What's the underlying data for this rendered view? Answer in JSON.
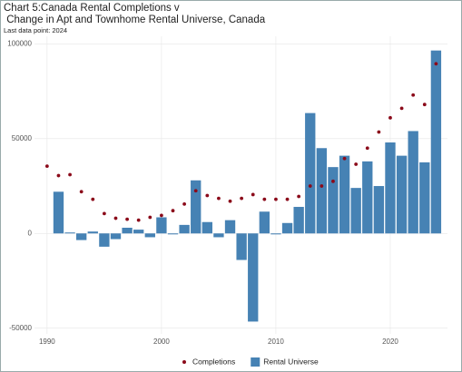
{
  "chart_data": {
    "type": "bar-scatter",
    "title": [
      "Chart 5:Canada Rental Completions v",
      " Change in Apt and Townhome Rental Universe, Canada"
    ],
    "subtitle": "Last data point: 2024",
    "x": [
      1990,
      1991,
      1992,
      1993,
      1994,
      1995,
      1996,
      1997,
      1998,
      1999,
      2000,
      2001,
      2002,
      2003,
      2004,
      2005,
      2006,
      2007,
      2008,
      2009,
      2010,
      2011,
      2012,
      2013,
      2014,
      2015,
      2016,
      2017,
      2018,
      2019,
      2020,
      2021,
      2022,
      2023,
      2024
    ],
    "series": [
      {
        "name": "Completions",
        "type": "scatter",
        "color": "#8b0a1a",
        "values": [
          35500,
          30500,
          31000,
          22000,
          18000,
          10500,
          8000,
          7500,
          7000,
          8500,
          9500,
          12000,
          15500,
          22500,
          20000,
          18500,
          17000,
          18500,
          20500,
          18000,
          18000,
          18000,
          19500,
          25000,
          25000,
          27500,
          39500,
          36500,
          45000,
          53500,
          61000,
          66000,
          73000,
          68000,
          89500
        ]
      },
      {
        "name": "Rental Universe",
        "type": "bar",
        "color": "#4682b4",
        "values": [
          null,
          22000,
          500,
          -3500,
          1000,
          -7000,
          -3000,
          3000,
          2000,
          -2000,
          8500,
          -500,
          4500,
          28000,
          6000,
          -2000,
          7000,
          -14000,
          -46500,
          11500,
          -500,
          5500,
          14000,
          63500,
          45000,
          35000,
          41000,
          24000,
          38000,
          25000,
          48000,
          41000,
          54000,
          37500,
          96500
        ]
      }
    ],
    "xlim": [
      1988.9,
      2025.0
    ],
    "xticks": [
      1990,
      2000,
      2010,
      2020
    ],
    "ylim": [
      -53000,
      104000
    ],
    "yticks": [
      -50000,
      0,
      50000,
      100000
    ],
    "grid": true,
    "legend": "bottom"
  }
}
